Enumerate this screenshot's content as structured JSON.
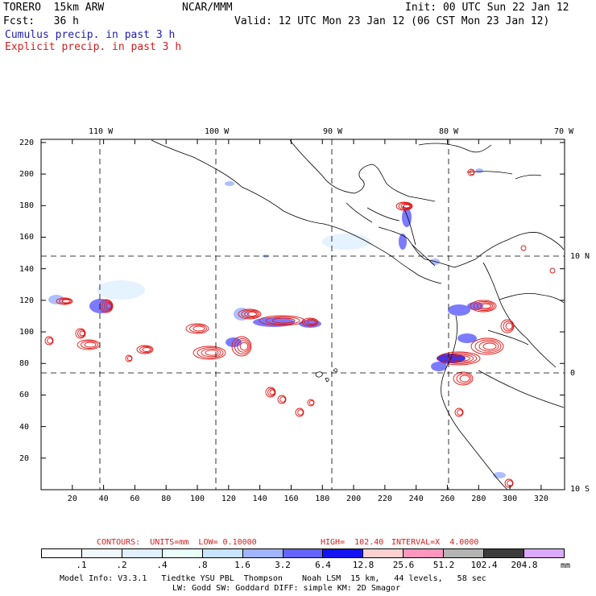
{
  "header": {
    "model": "TORERO  15km ARW",
    "org": "NCAR/MMM",
    "init": "Init: 00 UTC Sun 22 Jan 12",
    "fcst": "Fcst:   36 h",
    "valid": "Valid: 12 UTC Mon 23 Jan 12 (06 CST Mon 23 Jan 12)",
    "field1": "Cumulus precip. in past 3 h",
    "field2": "Explicit precip. in past 3 h"
  },
  "map": {
    "lon_labels": [
      "110 W",
      "100 W",
      "90 W",
      "80 W",
      "70 W"
    ],
    "lat_labels_right": [
      "10 N",
      "0",
      "10 S"
    ],
    "y_ticks": [
      "220",
      "200",
      "180",
      "160",
      "140",
      "120",
      "100",
      "80",
      "60",
      "40",
      "20"
    ],
    "x_ticks": [
      "20",
      "40",
      "60",
      "80",
      "100",
      "120",
      "140",
      "160",
      "180",
      "200",
      "220",
      "240",
      "260",
      "280",
      "300",
      "320"
    ]
  },
  "contour_info": {
    "units": "CONTOURS:  UNITS=mm  LOW= 0.10000",
    "high": "HIGH=  102.40",
    "interval": "INTERVAL=X  4.0000"
  },
  "legend": {
    "levels": [
      ".1",
      ".2",
      ".4",
      ".8",
      "1.6",
      "3.2",
      "6.4",
      "12.8",
      "25.6",
      "51.2",
      "102.4",
      "204.8"
    ],
    "unit": "mm",
    "colors": [
      "#ffffff",
      "#f0f8ff",
      "#e0f0ff",
      "#e8fff8",
      "#c8e4ff",
      "#a0b4ff",
      "#6464ff",
      "#1414f0",
      "#ffd0d0",
      "#ff96be",
      "#b4b4b4",
      "#3c3c3c",
      "#dcaaff"
    ]
  },
  "footer": {
    "line1": "Model Info: V3.3.1   Tiedtke YSU PBL  Thompson    Noah LSM  15 km,   44 levels,   58 sec",
    "line2": "LW: Godd SW: Goddard DIFF: simple KM: 2D Smagor"
  }
}
